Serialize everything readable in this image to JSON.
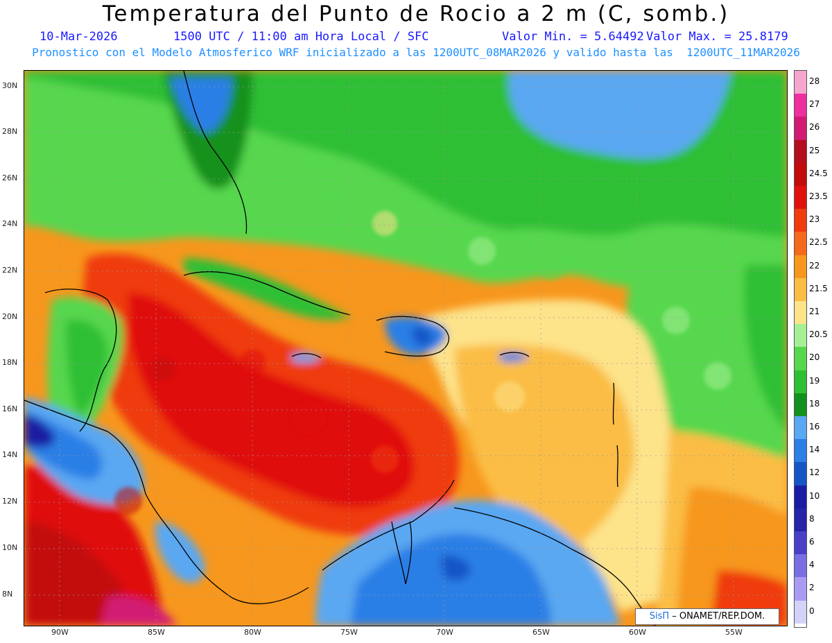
{
  "header": {
    "title": "Temperatura del Punto de Rocio a 2 m (C, somb.)",
    "date": "10-Mar-2026",
    "time": "1500 UTC / 11:00 am Hora Local / SFC",
    "min": "Valor Min. = 5.64492",
    "max": "Valor Max. = 25.8179",
    "model_info": "Pronostico con el Modelo Atmosferico WRF inicializado a las 1200UTC_08MAR2026 y valido hasta las  1200UTC_11MAR2026"
  },
  "map": {
    "lat_labels": [
      "30N",
      "28N",
      "26N",
      "24N",
      "22N",
      "20N",
      "18N",
      "16N",
      "14N",
      "12N",
      "10N",
      "8N"
    ],
    "lon_labels": [
      "90W",
      "85W",
      "80W",
      "75W",
      "70W",
      "65W",
      "60W",
      "55W"
    ],
    "grid": true
  },
  "colorbar": {
    "levels": [
      {
        "label": "28",
        "color": "#f4a6cf"
      },
      {
        "label": "27",
        "color": "#ee2f9f"
      },
      {
        "label": "26",
        "color": "#d11a73"
      },
      {
        "label": "25",
        "color": "#b40d1e"
      },
      {
        "label": "24.5",
        "color": "#c30b0b"
      },
      {
        "label": "23.5",
        "color": "#e0110c"
      },
      {
        "label": "23",
        "color": "#ef3b0e"
      },
      {
        "label": "22.5",
        "color": "#f4691c"
      },
      {
        "label": "22",
        "color": "#f7971d"
      },
      {
        "label": "21.5",
        "color": "#fbbd44"
      },
      {
        "label": "21",
        "color": "#fde38a"
      },
      {
        "label": "20.5",
        "color": "#a5f094"
      },
      {
        "label": "20",
        "color": "#57d74d"
      },
      {
        "label": "19",
        "color": "#2fbf34"
      },
      {
        "label": "18",
        "color": "#13911e"
      },
      {
        "label": "16",
        "color": "#5aa7f2"
      },
      {
        "label": "14",
        "color": "#2b7fe6"
      },
      {
        "label": "12",
        "color": "#1555c6"
      },
      {
        "label": "10",
        "color": "#1a1ca3"
      },
      {
        "label": "8",
        "color": "#2624a8"
      },
      {
        "label": "6",
        "color": "#4a3fc7"
      },
      {
        "label": "4",
        "color": "#7a6fe2"
      },
      {
        "label": "2",
        "color": "#a99bf3"
      },
      {
        "label": "0",
        "color": "#d5d2fa"
      }
    ],
    "bottom_color": "#ffffff"
  },
  "credit": {
    "brand": "SisΠ",
    "org": "– ONAMET/REP.DOM."
  }
}
